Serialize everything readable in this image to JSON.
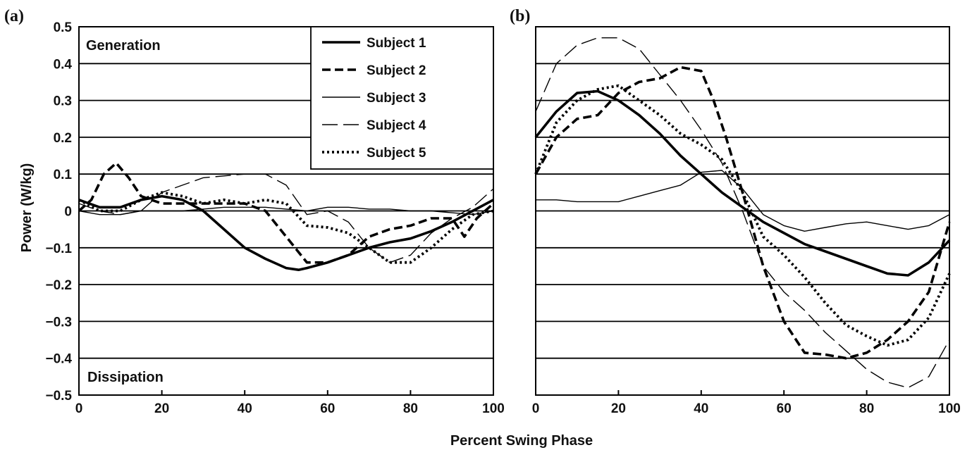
{
  "chart_data": [
    {
      "panel": "(a)",
      "type": "line",
      "xlabel": "Percent Swing Phase",
      "ylabel": "Power (W/kg)",
      "xlim": [
        0,
        100
      ],
      "ylim": [
        -0.5,
        0.5
      ],
      "xticks": [
        "0",
        "20",
        "40",
        "60",
        "80",
        "100"
      ],
      "yticks": [
        "0.5",
        "0.4",
        "0.3",
        "0.2",
        "0.1",
        "0",
        "−0.1",
        "−0.2",
        "−0.3",
        "−0.4",
        "−0.5"
      ],
      "grid": "horizontal",
      "annotations": [
        "Generation",
        "Dissipation"
      ],
      "legend_position": "top-right",
      "series": [
        {
          "name": "Subject 1",
          "style": "solid-thick",
          "x": [
            0,
            5,
            10,
            15,
            20,
            25,
            30,
            35,
            40,
            45,
            50,
            53,
            55,
            60,
            65,
            70,
            75,
            80,
            85,
            90,
            95,
            100
          ],
          "values": [
            0.03,
            0.01,
            0.01,
            0.03,
            0.04,
            0.03,
            0.0,
            -0.05,
            -0.1,
            -0.13,
            -0.155,
            -0.16,
            -0.155,
            -0.14,
            -0.12,
            -0.1,
            -0.085,
            -0.075,
            -0.055,
            -0.03,
            0.0,
            0.03
          ]
        },
        {
          "name": "Subject 2",
          "style": "dashed-thick",
          "x": [
            0,
            3,
            6,
            9,
            12,
            15,
            20,
            25,
            30,
            35,
            40,
            45,
            50,
            55,
            60,
            65,
            70,
            75,
            80,
            85,
            90,
            93,
            96,
            100
          ],
          "values": [
            0.0,
            0.03,
            0.1,
            0.13,
            0.09,
            0.04,
            0.02,
            0.02,
            0.02,
            0.02,
            0.02,
            0.0,
            -0.07,
            -0.14,
            -0.14,
            -0.12,
            -0.07,
            -0.05,
            -0.04,
            -0.02,
            -0.02,
            -0.07,
            -0.02,
            0.02
          ]
        },
        {
          "name": "Subject 3",
          "style": "solid-thin",
          "x": [
            0,
            5,
            10,
            15,
            20,
            25,
            30,
            35,
            40,
            45,
            50,
            55,
            60,
            65,
            70,
            75,
            80,
            85,
            90,
            95,
            100
          ],
          "values": [
            0.0,
            -0.01,
            -0.01,
            0.0,
            0.0,
            0.0,
            0.005,
            0.01,
            0.01,
            0.01,
            0.005,
            0.0,
            0.01,
            0.01,
            0.005,
            0.005,
            0.0,
            0.0,
            -0.005,
            -0.01,
            0.0
          ]
        },
        {
          "name": "Subject 4",
          "style": "long-dash-thin",
          "x": [
            0,
            5,
            10,
            15,
            20,
            25,
            30,
            35,
            40,
            45,
            50,
            55,
            60,
            65,
            70,
            75,
            80,
            85,
            90,
            95,
            100
          ],
          "values": [
            0.02,
            0.0,
            -0.01,
            0.0,
            0.05,
            0.07,
            0.09,
            0.095,
            0.1,
            0.1,
            0.07,
            -0.01,
            0.0,
            -0.03,
            -0.1,
            -0.14,
            -0.12,
            -0.06,
            -0.02,
            0.01,
            0.06
          ]
        },
        {
          "name": "Subject 5",
          "style": "dotted-thick",
          "x": [
            0,
            5,
            10,
            15,
            20,
            25,
            30,
            35,
            40,
            45,
            50,
            55,
            60,
            65,
            70,
            75,
            80,
            85,
            90,
            95,
            100
          ],
          "values": [
            0.03,
            0.0,
            0.0,
            0.03,
            0.05,
            0.04,
            0.02,
            0.03,
            0.02,
            0.03,
            0.02,
            -0.04,
            -0.045,
            -0.06,
            -0.1,
            -0.14,
            -0.14,
            -0.1,
            -0.05,
            -0.01,
            0.0
          ]
        }
      ]
    },
    {
      "panel": "(b)",
      "type": "line",
      "xlabel": "Percent Swing Phase",
      "xlim": [
        0,
        100
      ],
      "ylim": [
        -0.5,
        0.5
      ],
      "xticks": [
        "0",
        "20",
        "40",
        "60",
        "80",
        "100"
      ],
      "grid": "horizontal",
      "series": [
        {
          "name": "Subject 1",
          "style": "solid-thick",
          "x": [
            0,
            5,
            10,
            15,
            20,
            25,
            30,
            35,
            40,
            45,
            50,
            55,
            60,
            65,
            70,
            75,
            80,
            85,
            90,
            95,
            100
          ],
          "values": [
            0.2,
            0.27,
            0.32,
            0.325,
            0.3,
            0.26,
            0.21,
            0.15,
            0.1,
            0.05,
            0.01,
            -0.03,
            -0.06,
            -0.09,
            -0.11,
            -0.13,
            -0.15,
            -0.17,
            -0.175,
            -0.14,
            -0.08
          ]
        },
        {
          "name": "Subject 2",
          "style": "dashed-thick",
          "x": [
            0,
            5,
            10,
            15,
            20,
            25,
            30,
            35,
            40,
            43,
            46,
            50,
            55,
            60,
            65,
            70,
            75,
            80,
            85,
            90,
            95,
            100
          ],
          "values": [
            0.1,
            0.2,
            0.25,
            0.26,
            0.32,
            0.35,
            0.36,
            0.39,
            0.38,
            0.3,
            0.2,
            0.05,
            -0.15,
            -0.3,
            -0.385,
            -0.39,
            -0.4,
            -0.385,
            -0.35,
            -0.3,
            -0.22,
            -0.03
          ]
        },
        {
          "name": "Subject 3",
          "style": "solid-thin",
          "x": [
            0,
            5,
            10,
            15,
            20,
            25,
            30,
            35,
            40,
            45,
            50,
            55,
            60,
            65,
            70,
            75,
            80,
            85,
            90,
            95,
            100
          ],
          "values": [
            0.03,
            0.03,
            0.025,
            0.025,
            0.025,
            0.04,
            0.055,
            0.07,
            0.105,
            0.11,
            0.06,
            -0.01,
            -0.04,
            -0.055,
            -0.045,
            -0.035,
            -0.03,
            -0.04,
            -0.05,
            -0.04,
            -0.01
          ]
        },
        {
          "name": "Subject 4",
          "style": "long-dash-thin",
          "x": [
            0,
            5,
            10,
            15,
            20,
            25,
            30,
            35,
            40,
            45,
            50,
            55,
            60,
            65,
            70,
            75,
            80,
            85,
            90,
            95,
            100
          ],
          "values": [
            0.27,
            0.4,
            0.45,
            0.47,
            0.47,
            0.44,
            0.37,
            0.3,
            0.22,
            0.13,
            0.0,
            -0.15,
            -0.22,
            -0.27,
            -0.33,
            -0.38,
            -0.43,
            -0.465,
            -0.48,
            -0.45,
            -0.35
          ]
        },
        {
          "name": "Subject 5",
          "style": "dotted-thick",
          "x": [
            0,
            5,
            10,
            15,
            20,
            25,
            30,
            35,
            40,
            45,
            50,
            55,
            60,
            65,
            70,
            75,
            80,
            85,
            90,
            95,
            100
          ],
          "values": [
            0.1,
            0.24,
            0.3,
            0.33,
            0.34,
            0.3,
            0.26,
            0.21,
            0.18,
            0.14,
            0.05,
            -0.07,
            -0.12,
            -0.18,
            -0.25,
            -0.31,
            -0.34,
            -0.365,
            -0.35,
            -0.29,
            -0.17
          ]
        }
      ]
    }
  ]
}
